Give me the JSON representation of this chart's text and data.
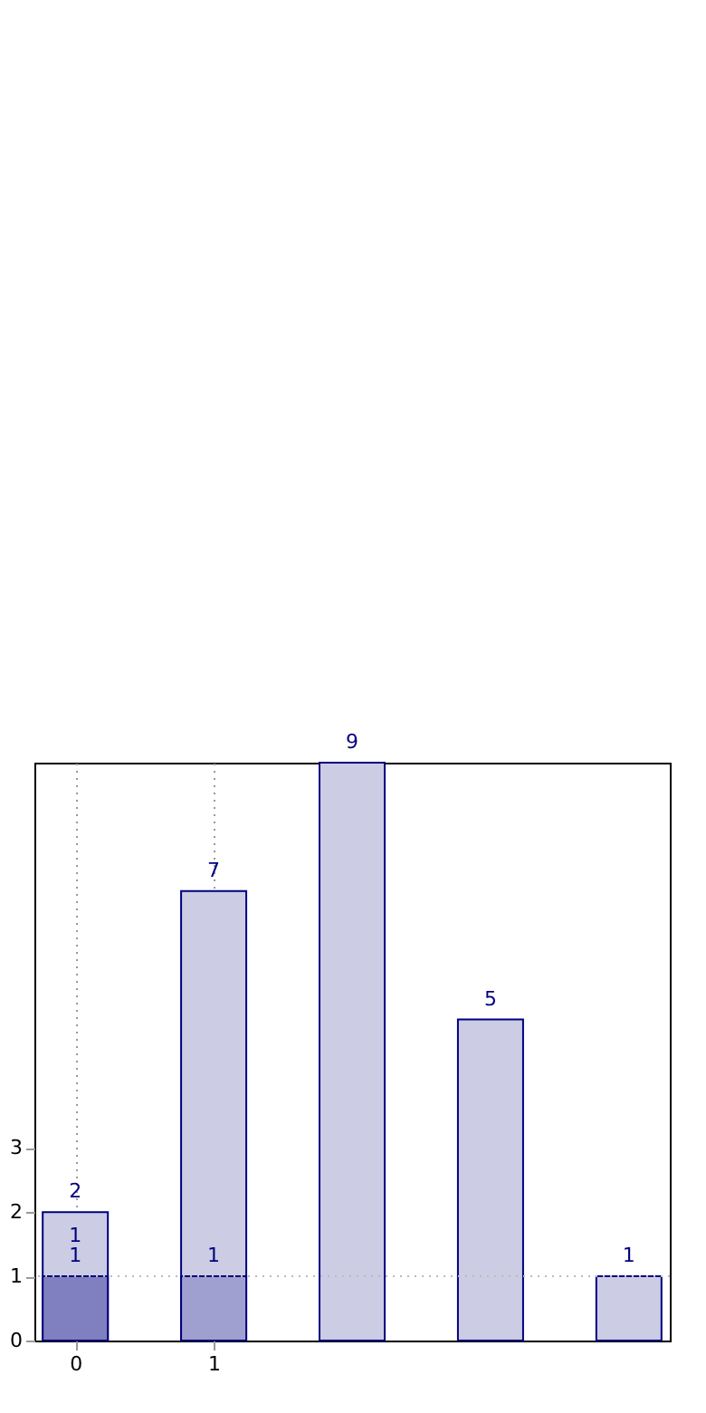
{
  "chart_data": {
    "type": "bar",
    "x": [
      0,
      1,
      2,
      3,
      4
    ],
    "series": [
      {
        "color": "#ccccE4",
        "values": [
          2,
          7,
          9,
          5,
          1
        ]
      },
      {
        "colors": [
          "#8080c0",
          "#a0a0d0",
          null,
          null,
          null
        ],
        "values": [
          1,
          1,
          null,
          null,
          null
        ]
      }
    ],
    "annotations": [
      {
        "text": "1",
        "x": 0,
        "y": 1
      }
    ],
    "xlim": [
      -0.23,
      4.23
    ],
    "xticks": [
      0,
      1
    ],
    "ylim": [
      0,
      9
    ],
    "yticks": [
      0,
      1,
      2,
      3
    ],
    "grid": "x",
    "data_labels": true,
    "ref_lines": [
      {
        "axis": "y",
        "value": 1,
        "color": "#bbbbbb",
        "line_style": "dotted"
      }
    ]
  }
}
